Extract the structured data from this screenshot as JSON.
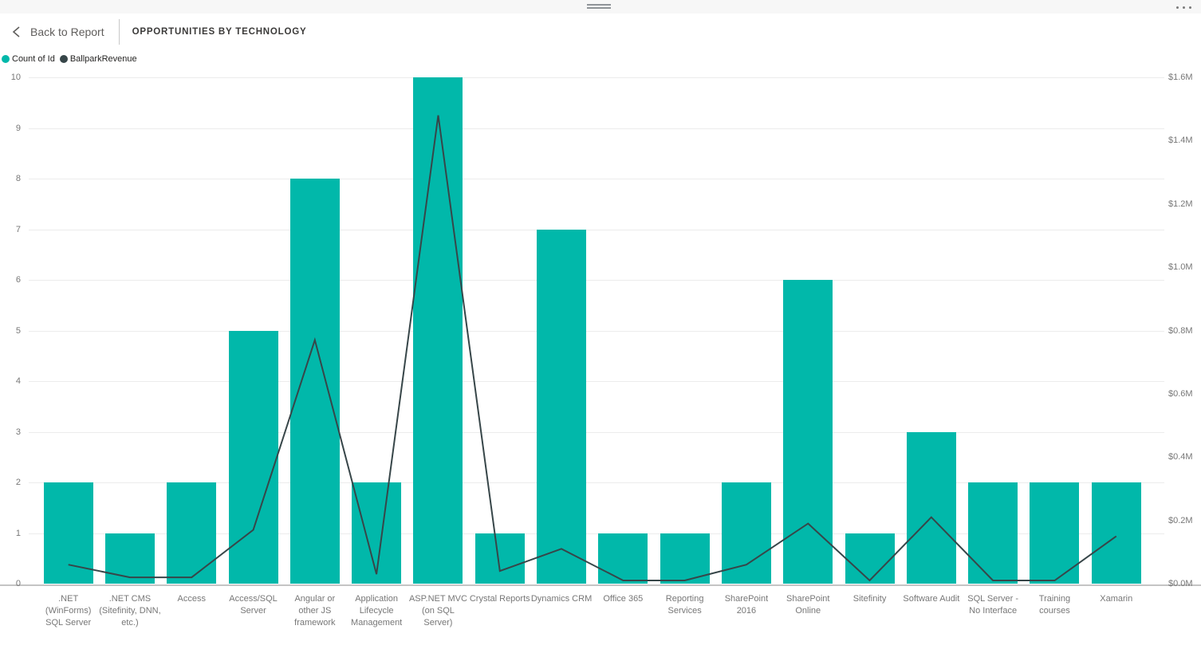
{
  "titlebar": {
    "icons": {
      "drag": "drag-handle",
      "more": "ellipsis-menu"
    }
  },
  "header": {
    "back_label": "Back to Report",
    "title": "OPPORTUNITIES BY TECHNOLOGY",
    "icons": {
      "back": "chevron-left"
    }
  },
  "legend": [
    {
      "label": "Count of Id",
      "color": "#01B8AA"
    },
    {
      "label": "BallparkRevenue",
      "color": "#374649"
    }
  ],
  "colors": {
    "bar": "#01B8AA",
    "line": "#374649",
    "axis_text": "#777777",
    "gridline": "#ECECEC"
  },
  "chart_data": {
    "type": "bar",
    "subtype": "combo-bar-line",
    "title": "Opportunities by Technology",
    "xlabel": "",
    "ylabel_left": "Count of Id",
    "ylabel_right": "BallparkRevenue",
    "grid": true,
    "legend_position": "top-left",
    "categories": [
      ".NET (WinForms) SQL Server",
      ".NET CMS (Sitefinity, DNN, etc.)",
      "Access",
      "Access/SQL Server",
      "Angular or other JS framework",
      "Application Lifecycle Management",
      "ASP.NET MVC (on SQL Server)",
      "Crystal Reports",
      "Dynamics CRM",
      "Office 365",
      "Reporting Services",
      "SharePoint 2016",
      "SharePoint Online",
      "Sitefinity",
      "Software Audit",
      "SQL Server - No Interface",
      "Training courses",
      "Xamarin"
    ],
    "series": [
      {
        "name": "Count of Id",
        "type": "bar",
        "axis": "left",
        "color": "#01B8AA",
        "values": [
          2,
          1,
          2,
          5,
          8,
          2,
          10,
          1,
          7,
          1,
          1,
          2,
          6,
          1,
          3,
          2,
          2,
          2
        ]
      },
      {
        "name": "BallparkRevenue",
        "type": "line",
        "axis": "right",
        "color": "#374649",
        "unit": "$M",
        "values": [
          0.06,
          0.02,
          0.02,
          0.17,
          0.77,
          0.03,
          1.48,
          0.04,
          0.11,
          0.01,
          0.01,
          0.06,
          0.19,
          0.01,
          0.21,
          0.01,
          0.01,
          0.15
        ]
      }
    ],
    "left_axis": {
      "min": 0,
      "max": 10,
      "tick_labels": [
        "0",
        "1",
        "2",
        "3",
        "4",
        "5",
        "6",
        "7",
        "8",
        "9",
        "10"
      ]
    },
    "right_axis": {
      "min": 0,
      "max": 1.6,
      "tick_labels": [
        "$0.0M",
        "$0.2M",
        "$0.4M",
        "$0.6M",
        "$0.8M",
        "$1.0M",
        "$1.2M",
        "$1.4M",
        "$1.6M"
      ]
    }
  }
}
